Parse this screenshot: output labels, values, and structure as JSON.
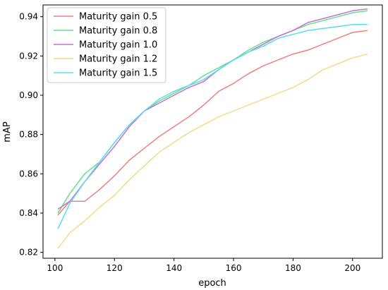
{
  "chart_data": {
    "type": "line",
    "title": "",
    "xlabel": "epoch",
    "ylabel": "mAP",
    "xlim": [
      96,
      210
    ],
    "ylim": [
      0.817,
      0.946
    ],
    "xticks": [
      100,
      120,
      140,
      160,
      180,
      200
    ],
    "yticks": [
      0.82,
      0.84,
      0.86,
      0.88,
      0.9,
      0.92,
      0.94
    ],
    "xtick_labels": [
      "100",
      "120",
      "140",
      "160",
      "180",
      "200"
    ],
    "ytick_labels": [
      "0.82",
      "0.84",
      "0.86",
      "0.88",
      "0.90",
      "0.92",
      "0.94"
    ],
    "grid": false,
    "legend_position": "top-left",
    "x": [
      101,
      105,
      110,
      115,
      120,
      125,
      130,
      135,
      140,
      145,
      150,
      155,
      160,
      165,
      170,
      175,
      180,
      185,
      190,
      195,
      200,
      205
    ],
    "series": [
      {
        "name": "Maturity gain 0.5",
        "color": "#f08080",
        "values": [
          0.839,
          0.846,
          0.846,
          0.852,
          0.859,
          0.867,
          0.873,
          0.879,
          0.884,
          0.889,
          0.895,
          0.902,
          0.906,
          0.911,
          0.915,
          0.918,
          0.921,
          0.923,
          0.926,
          0.929,
          0.932,
          0.933
        ]
      },
      {
        "name": "Maturity gain 0.8",
        "color": "#66e08a",
        "values": [
          0.84,
          0.85,
          0.86,
          0.866,
          0.876,
          0.885,
          0.892,
          0.897,
          0.901,
          0.905,
          0.91,
          0.914,
          0.918,
          0.923,
          0.927,
          0.93,
          0.933,
          0.936,
          0.938,
          0.94,
          0.942,
          0.943
        ]
      },
      {
        "name": "Maturity gain 1.0",
        "color": "#cc6fcc",
        "values": [
          0.842,
          0.846,
          0.856,
          0.865,
          0.874,
          0.884,
          0.892,
          0.896,
          0.9,
          0.904,
          0.907,
          0.913,
          0.918,
          0.922,
          0.926,
          0.93,
          0.933,
          0.937,
          0.939,
          0.941,
          0.943,
          0.944
        ]
      },
      {
        "name": "Maturity gain 1.2",
        "color": "#f8d88a",
        "values": [
          0.822,
          0.83,
          0.836,
          0.843,
          0.849,
          0.857,
          0.864,
          0.871,
          0.876,
          0.881,
          0.885,
          0.889,
          0.892,
          0.895,
          0.898,
          0.901,
          0.904,
          0.908,
          0.913,
          0.916,
          0.919,
          0.921
        ]
      },
      {
        "name": "Maturity gain 1.5",
        "color": "#55ddf5",
        "values": [
          0.832,
          0.845,
          0.856,
          0.866,
          0.876,
          0.885,
          0.892,
          0.898,
          0.902,
          0.905,
          0.908,
          0.913,
          0.918,
          0.922,
          0.925,
          0.929,
          0.931,
          0.933,
          0.934,
          0.935,
          0.936,
          0.936
        ]
      }
    ]
  }
}
